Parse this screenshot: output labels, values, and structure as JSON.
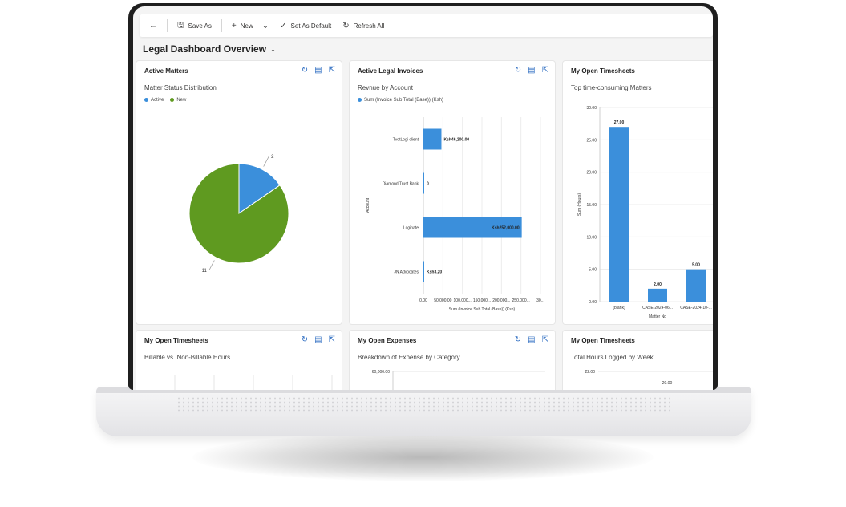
{
  "toolbar": {
    "save_as": "Save As",
    "new": "New",
    "set_as_default": "Set As Default",
    "refresh_all": "Refresh All"
  },
  "dashboard": {
    "title": "Legal Dashboard Overview"
  },
  "cards": [
    {
      "title": "Active Matters",
      "subtitle": "Matter Status Distribution",
      "legend": [
        {
          "label": "Active",
          "color": "#3b8fdb"
        },
        {
          "label": "New",
          "color": "#5f9a20"
        }
      ]
    },
    {
      "title": "Active Legal Invoices",
      "subtitle": "Revnue by Account",
      "legend": [
        {
          "label": "Sum (Invoice Sub Total (Base)) (Ksh)",
          "color": "#3b8fdb"
        }
      ]
    },
    {
      "title": "My Open Timesheets",
      "subtitle": "Top time-consuming Matters"
    },
    {
      "title": "My Open Timesheets",
      "subtitle": "Billable vs. Non-Billable Hours"
    },
    {
      "title": "My Open Expenses",
      "subtitle": "Breakdown of Expense by Category"
    },
    {
      "title": "My Open Timesheets",
      "subtitle": "Total Hours Logged by Week"
    }
  ],
  "chart_data": [
    {
      "type": "pie",
      "title": "Matter Status Distribution",
      "categories": [
        "Active",
        "New"
      ],
      "values": [
        2,
        11
      ],
      "colors": [
        "#3b8fdb",
        "#5f9a20"
      ],
      "legend": "top-left"
    },
    {
      "type": "bar",
      "orientation": "horizontal",
      "title": "Revnue by Account",
      "categories": [
        "TvotLogi client",
        "Diamond Trust Bank",
        "Loginate",
        "JN Advocates"
      ],
      "values": [
        46200,
        0,
        252000,
        3.2
      ],
      "data_labels": [
        "Ksh46,200.00",
        "0",
        "Ksh252,000.00",
        "Ksh3.20"
      ],
      "xlabel": "Sum (Invoice Sub Total (Base)) (Ksh)",
      "ylabel": "Account",
      "x_ticks": [
        "0.00",
        "50,000.00",
        "100,000...",
        "150,000...",
        "200,000...",
        "250,000...",
        "30..."
      ],
      "xlim": [
        0,
        300000
      ]
    },
    {
      "type": "bar",
      "title": "Top time-consuming Matters",
      "categories": [
        "(blank)",
        "CASE-2024-06...",
        "CASE-2024-10-..."
      ],
      "values": [
        27,
        2,
        5
      ],
      "data_labels": [
        "27.00",
        "2.00",
        "5.00"
      ],
      "xlabel": "Matter No",
      "ylabel": "Sum (Hours)",
      "y_ticks": [
        "0.00",
        "5.00",
        "10.00",
        "15.00",
        "20.00",
        "25.00",
        "30.00"
      ],
      "ylim": [
        0,
        30
      ]
    },
    {
      "type": "bar",
      "title": "Breakdown of Expense by Category",
      "y_ticks": [
        "60,000.00"
      ]
    },
    {
      "type": "bar",
      "title": "Total Hours Logged by Week",
      "y_ticks": [
        "22.00"
      ],
      "data_labels": [
        "20.00"
      ]
    }
  ]
}
